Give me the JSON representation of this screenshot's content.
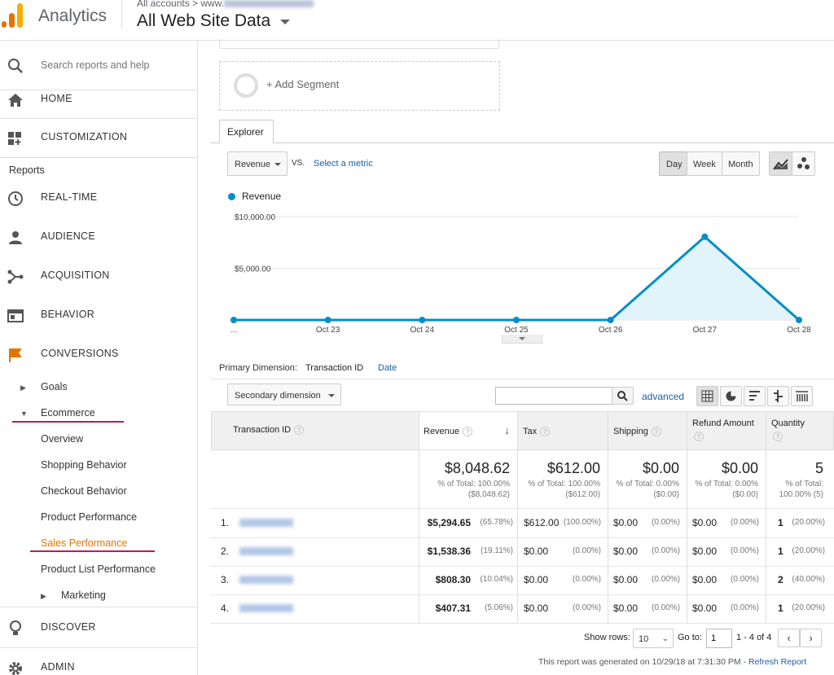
{
  "header": {
    "app_title": "Analytics",
    "breadcrumb": "All accounts > www.",
    "view_name": "All Web Site Data"
  },
  "sidebar": {
    "search_placeholder": "Search reports and help",
    "home": "HOME",
    "customization": "CUSTOMIZATION",
    "reports_label": "Reports",
    "realtime": "REAL-TIME",
    "audience": "AUDIENCE",
    "acquisition": "ACQUISITION",
    "behavior": "BEHAVIOR",
    "conversions": "CONVERSIONS",
    "goals": "Goals",
    "ecommerce": "Ecommerce",
    "ecommerce_items": [
      "Overview",
      "Shopping Behavior",
      "Checkout Behavior",
      "Product Performance",
      "Sales Performance",
      "Product List Performance"
    ],
    "marketing": "Marketing",
    "discover": "DISCOVER",
    "admin": "ADMIN",
    "accent_color": "#e37400"
  },
  "segments": {
    "add_segment": "+ Add Segment"
  },
  "explorer": {
    "tab": "Explorer",
    "metric": "Revenue",
    "vs": "VS.",
    "select_metric": "Select a metric",
    "periods": [
      "Day",
      "Week",
      "Month"
    ],
    "active_period": "Day"
  },
  "chart_data": {
    "type": "area",
    "series": [
      {
        "name": "Revenue",
        "values": [
          0,
          0,
          0,
          0,
          0,
          8048.62,
          0
        ]
      }
    ],
    "categories": [
      "...",
      "Oct 23",
      "Oct 24",
      "Oct 25",
      "Oct 26",
      "Oct 27",
      "Oct 28"
    ],
    "y_ticks": [
      "$10,000.00",
      "$5,000.00"
    ],
    "ylim": [
      0,
      10000
    ],
    "color": "#058dc7",
    "fill": "#e1f3fb"
  },
  "dimension": {
    "primary_label": "Primary Dimension:",
    "primary": "Transaction ID",
    "alt": "Date",
    "secondary": "Secondary dimension",
    "advanced": "advanced"
  },
  "table": {
    "headers": [
      "Transaction ID",
      "Revenue",
      "Tax",
      "Shipping",
      "Refund Amount",
      "Quantity"
    ],
    "totals": {
      "revenue": "$8,048.62",
      "revenue_sub": "% of Total: 100.00% ($8,048.62)",
      "tax": "$612.00",
      "tax_sub": "% of Total: 100.00% ($612.00)",
      "shipping": "$0.00",
      "shipping_sub": "% of Total: 0.00% ($0.00)",
      "refund": "$0.00",
      "refund_sub": "% of Total: 0.00% ($0.00)",
      "quantity": "5",
      "quantity_sub": "% of Total: 100.00% (5)"
    },
    "rows": [
      {
        "n": "1.",
        "revenue": "$5,294.65",
        "revenue_pct": "(65.78%)",
        "tax": "$612.00",
        "tax_pct": "(100.00%)",
        "shipping": "$0.00",
        "shipping_pct": "(0.00%)",
        "refund": "$0.00",
        "refund_pct": "(0.00%)",
        "qty": "1",
        "qty_pct": "(20.00%)"
      },
      {
        "n": "2.",
        "revenue": "$1,538.36",
        "revenue_pct": "(19.11%)",
        "tax": "$0.00",
        "tax_pct": "(0.00%)",
        "shipping": "$0.00",
        "shipping_pct": "(0.00%)",
        "refund": "$0.00",
        "refund_pct": "(0.00%)",
        "qty": "1",
        "qty_pct": "(20.00%)"
      },
      {
        "n": "3.",
        "revenue": "$808.30",
        "revenue_pct": "(10.04%)",
        "tax": "$0.00",
        "tax_pct": "(0.00%)",
        "shipping": "$0.00",
        "shipping_pct": "(0.00%)",
        "refund": "$0.00",
        "refund_pct": "(0.00%)",
        "qty": "2",
        "qty_pct": "(40.00%)"
      },
      {
        "n": "4.",
        "revenue": "$407.31",
        "revenue_pct": "(5.06%)",
        "tax": "$0.00",
        "tax_pct": "(0.00%)",
        "shipping": "$0.00",
        "shipping_pct": "(0.00%)",
        "refund": "$0.00",
        "refund_pct": "(0.00%)",
        "qty": "1",
        "qty_pct": "(20.00%)"
      }
    ]
  },
  "pagination": {
    "show_rows_label": "Show rows:",
    "rows": "10",
    "goto_label": "Go to:",
    "goto": "1",
    "range": "1 - 4 of 4"
  },
  "footer": {
    "generated": "This report was generated on 10/29/18 at 7:31:30 PM - ",
    "refresh": "Refresh Report"
  }
}
